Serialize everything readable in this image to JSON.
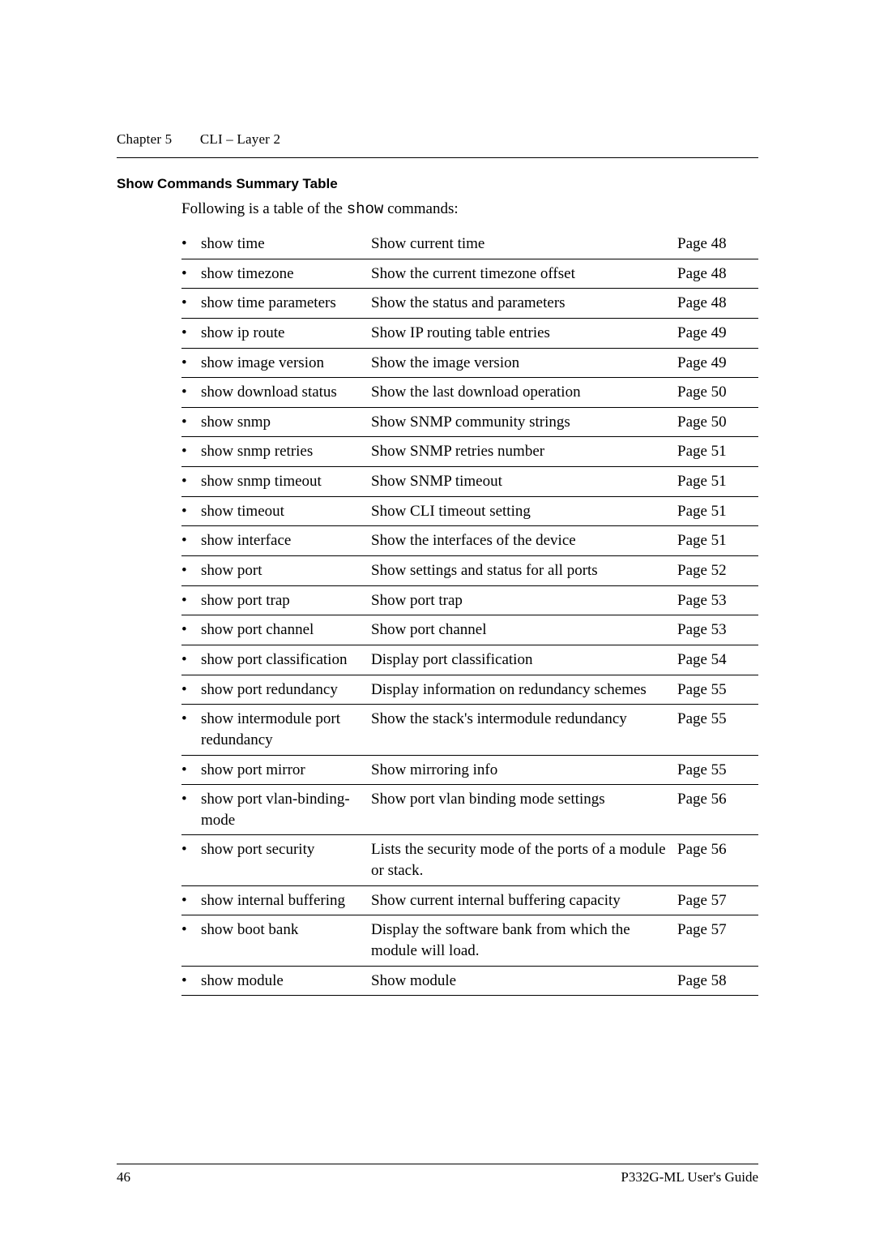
{
  "header": {
    "chapter_label": "Chapter 5",
    "chapter_title": "CLI – Layer 2"
  },
  "section": {
    "heading": "Show Commands Summary Table",
    "intro_prefix": "Following is a table of the ",
    "intro_code": "show",
    "intro_suffix": " commands:"
  },
  "table": {
    "rows": [
      {
        "cmd": "show time",
        "desc": "Show current time",
        "page": "Page 48"
      },
      {
        "cmd": "show timezone",
        "desc": "Show the current timezone offset",
        "page": "Page 48"
      },
      {
        "cmd": "show time parameters",
        "desc": "Show the status and parameters",
        "page": "Page 48"
      },
      {
        "cmd": "show ip route",
        "desc": "Show IP routing table entries",
        "page": "Page 49"
      },
      {
        "cmd": "show image version",
        "desc": "Show the image version",
        "page": "Page 49"
      },
      {
        "cmd": "show download status",
        "desc": "Show the last download operation",
        "page": "Page 50"
      },
      {
        "cmd": "show snmp",
        "desc": "Show SNMP community strings",
        "page": "Page 50"
      },
      {
        "cmd": "show snmp retries",
        "desc": "Show SNMP retries number",
        "page": "Page 51"
      },
      {
        "cmd": "show snmp timeout",
        "desc": "Show SNMP timeout",
        "page": "Page 51"
      },
      {
        "cmd": "show timeout",
        "desc": "Show CLI timeout setting",
        "page": "Page 51"
      },
      {
        "cmd": "show interface",
        "desc": "Show the interfaces of the device",
        "page": "Page 51"
      },
      {
        "cmd": "show port",
        "desc": "Show settings and status for all ports",
        "page": "Page 52"
      },
      {
        "cmd": "show port trap",
        "desc": "Show port trap",
        "page": "Page 53"
      },
      {
        "cmd": "show port channel",
        "desc": "Show port channel",
        "page": "Page 53"
      },
      {
        "cmd": "show port classification",
        "desc": "Display port classification",
        "page": "Page 54"
      },
      {
        "cmd": "show port redundancy",
        "desc": "Display information on redundancy schemes",
        "page": "Page 55"
      },
      {
        "cmd": "show intermodule port redundancy",
        "desc": "Show the stack's intermodule redundancy",
        "page": "Page 55"
      },
      {
        "cmd": "show port mirror",
        "desc": "Show mirroring info",
        "page": "Page 55"
      },
      {
        "cmd": "show port vlan-binding-mode",
        "desc": "Show port vlan binding mode settings",
        "page": "Page 56"
      },
      {
        "cmd": "show port security",
        "desc": "Lists the security mode of the ports of a module or stack.",
        "page": "Page 56"
      },
      {
        "cmd": "show internal buffering",
        "desc": "Show current internal buffering capacity",
        "page": "Page 57"
      },
      {
        "cmd": "show boot bank",
        "desc": "Display the software bank from which the module will load.",
        "page": "Page 57"
      },
      {
        "cmd": "show module",
        "desc": "Show module",
        "page": "Page 58"
      }
    ]
  },
  "footer": {
    "page_num": "46",
    "guide": "P332G-ML User's Guide"
  },
  "style": {
    "bullet": "•"
  }
}
